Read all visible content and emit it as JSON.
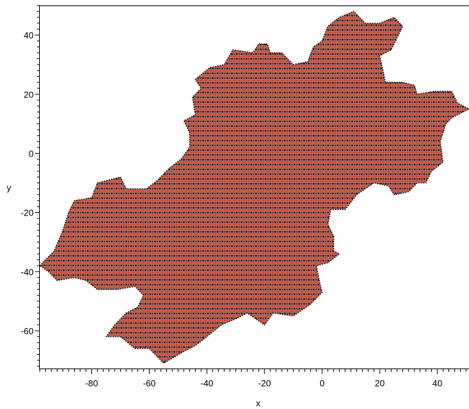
{
  "chart_data": {
    "type": "scatter",
    "title": "",
    "xlabel": "x",
    "ylabel": "y",
    "xlim": [
      -98,
      51
    ],
    "ylim": [
      -73,
      50
    ],
    "x_ticks": [
      -80,
      -60,
      -40,
      -20,
      0,
      20,
      40
    ],
    "y_ticks": [
      40,
      20,
      0,
      -20,
      -40,
      -60
    ],
    "x_tick_labels": [
      "-80",
      "-60",
      "-40",
      "-20",
      "0",
      "20",
      "40"
    ],
    "y_tick_labels": [
      "40",
      "20",
      "0",
      "-20",
      "-40",
      "-60"
    ],
    "grid": false,
    "legend": "none",
    "colors": {
      "point_dark": "#000000",
      "point_red": "#ff2a00",
      "fill": "#a85a50"
    },
    "point_spacing": 2,
    "series": [
      {
        "region_outline": [
          [
            -98,
            -38
          ],
          [
            -93,
            -33
          ],
          [
            -90,
            -26
          ],
          [
            -88,
            -20
          ],
          [
            -86,
            -16
          ],
          [
            -80,
            -15
          ],
          [
            -78,
            -10
          ],
          [
            -74,
            -9
          ],
          [
            -70,
            -8
          ],
          [
            -68,
            -12
          ],
          [
            -61,
            -12
          ],
          [
            -57,
            -9
          ],
          [
            -53,
            -5
          ],
          [
            -49,
            -2
          ],
          [
            -46,
            2
          ],
          [
            -46,
            7
          ],
          [
            -48,
            11
          ],
          [
            -44,
            13
          ],
          [
            -45,
            19
          ],
          [
            -42,
            22
          ],
          [
            -44,
            25
          ],
          [
            -39,
            29
          ],
          [
            -34,
            30
          ],
          [
            -31,
            35
          ],
          [
            -24,
            34
          ],
          [
            -22,
            37
          ],
          [
            -19,
            37
          ],
          [
            -18,
            34
          ],
          [
            -14,
            34
          ],
          [
            -10,
            30
          ],
          [
            -5,
            31
          ],
          [
            -3,
            36
          ],
          [
            0,
            38
          ],
          [
            2,
            43
          ],
          [
            6,
            46
          ],
          [
            11,
            48
          ],
          [
            15,
            44
          ],
          [
            20,
            44
          ],
          [
            25,
            46
          ],
          [
            28,
            43
          ],
          [
            24,
            35
          ],
          [
            20,
            33
          ],
          [
            22,
            24
          ],
          [
            28,
            24
          ],
          [
            32,
            23
          ],
          [
            33,
            20
          ],
          [
            39,
            21
          ],
          [
            45,
            21
          ],
          [
            47,
            17
          ],
          [
            51,
            15
          ],
          [
            45,
            12
          ],
          [
            43,
            10
          ],
          [
            41,
            4
          ],
          [
            42,
            -3
          ],
          [
            38,
            -6
          ],
          [
            36,
            -10
          ],
          [
            33,
            -10
          ],
          [
            30,
            -13
          ],
          [
            25,
            -14
          ],
          [
            23,
            -11
          ],
          [
            18,
            -10
          ],
          [
            12,
            -14
          ],
          [
            8,
            -19
          ],
          [
            3,
            -19
          ],
          [
            2,
            -24
          ],
          [
            4,
            -28
          ],
          [
            4,
            -33
          ],
          [
            6,
            -34
          ],
          [
            2,
            -37
          ],
          [
            -2,
            -38
          ],
          [
            -1,
            -43
          ],
          [
            0,
            -47
          ],
          [
            -4,
            -51
          ],
          [
            -10,
            -55
          ],
          [
            -17,
            -54
          ],
          [
            -20,
            -58
          ],
          [
            -26,
            -54
          ],
          [
            -30,
            -56
          ],
          [
            -35,
            -58
          ],
          [
            -40,
            -62
          ],
          [
            -44,
            -65
          ],
          [
            -48,
            -67
          ],
          [
            -55,
            -71
          ],
          [
            -60,
            -66
          ],
          [
            -65,
            -66
          ],
          [
            -70,
            -62
          ],
          [
            -75,
            -62
          ],
          [
            -72,
            -58
          ],
          [
            -68,
            -54
          ],
          [
            -64,
            -52
          ],
          [
            -62,
            -48
          ],
          [
            -65,
            -45
          ],
          [
            -71,
            -46
          ],
          [
            -78,
            -46
          ],
          [
            -82,
            -43
          ],
          [
            -86,
            -42
          ],
          [
            -92,
            -43
          ],
          [
            -95,
            -40
          ]
        ]
      }
    ]
  }
}
